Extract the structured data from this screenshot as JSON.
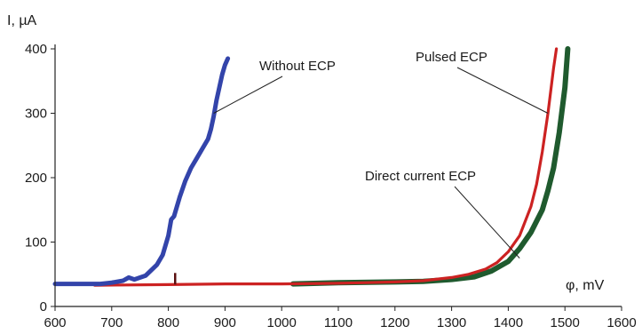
{
  "chart_data": {
    "type": "line",
    "title": "",
    "xlabel": "φ, mV",
    "ylabel": "I, µA",
    "xlim": [
      600,
      1600
    ],
    "ylim": [
      0,
      400
    ],
    "x_ticks": [
      600,
      700,
      800,
      900,
      1000,
      1100,
      1200,
      1300,
      1400,
      1500,
      1600
    ],
    "y_ticks": [
      0,
      100,
      200,
      300,
      400
    ],
    "grid": false,
    "legend": "none",
    "series": [
      {
        "name": "Without ECP",
        "color": "#3344aa",
        "x": [
          600,
          680,
          700,
          720,
          730,
          740,
          760,
          780,
          790,
          800,
          805,
          810,
          820,
          830,
          840,
          850,
          860,
          870,
          875,
          880,
          885,
          890,
          895,
          900,
          905
        ],
        "y": [
          35,
          35,
          37,
          40,
          45,
          42,
          48,
          65,
          80,
          110,
          135,
          140,
          170,
          195,
          215,
          230,
          245,
          260,
          275,
          295,
          320,
          340,
          360,
          375,
          385
        ]
      },
      {
        "name": "Pulsed ECP",
        "color": "#cc2222",
        "x": [
          670,
          800,
          900,
          1000,
          1100,
          1150,
          1200,
          1250,
          1300,
          1330,
          1360,
          1380,
          1400,
          1420,
          1440,
          1450,
          1460,
          1470,
          1480,
          1485
        ],
        "y": [
          33,
          34,
          35,
          35,
          36,
          37,
          38,
          40,
          45,
          50,
          58,
          68,
          85,
          110,
          155,
          190,
          240,
          300,
          370,
          400
        ]
      },
      {
        "name": "Direct current ECP",
        "color": "#1f5a2e",
        "x": [
          1020,
          1100,
          1200,
          1250,
          1300,
          1340,
          1370,
          1400,
          1420,
          1440,
          1460,
          1470,
          1480,
          1490,
          1500,
          1505
        ],
        "y": [
          35,
          37,
          38,
          39,
          42,
          46,
          55,
          70,
          90,
          115,
          150,
          180,
          215,
          270,
          340,
          400
        ]
      }
    ],
    "annotations": [
      {
        "text": "Without ECP",
        "series": "Without ECP",
        "x": 880,
        "y": 300
      },
      {
        "text": "Pulsed ECP",
        "series": "Pulsed ECP",
        "x": 1470,
        "y": 300
      },
      {
        "text": "Direct current ECP",
        "series": "Direct current ECP",
        "x": 1420,
        "y": 75
      }
    ]
  }
}
